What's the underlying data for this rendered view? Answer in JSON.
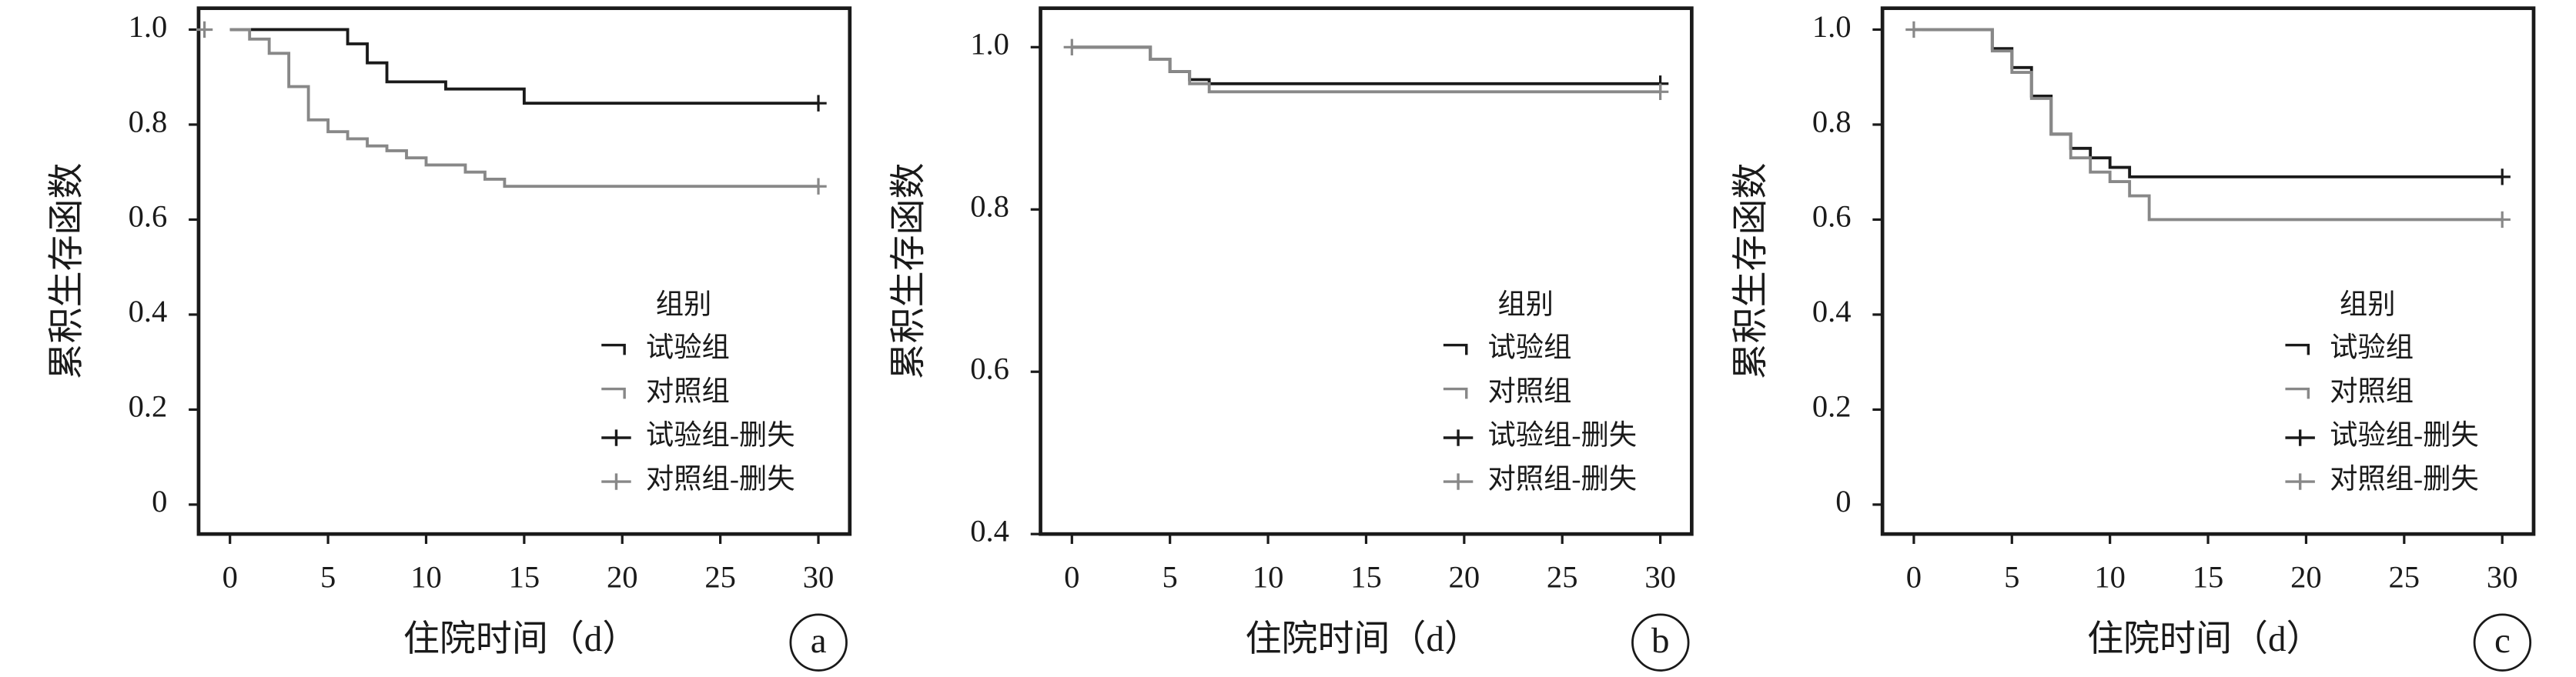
{
  "chart_data": [
    {
      "type": "line",
      "drawstyle": "steps-post",
      "panel_label": "a",
      "xlabel": "住院时间（d）",
      "ylabel": "累积生存函数",
      "legend_title": "组别",
      "legend_loc": "lower right",
      "xlim": [
        -1.6,
        31.6
      ],
      "xticks": [
        0,
        5,
        10,
        15,
        20,
        25,
        30
      ],
      "ylim": [
        -0.062,
        1.045
      ],
      "yticks": [
        0,
        0.2,
        0.4,
        0.6,
        0.8,
        {
          "value": 1,
          "label": "1.0"
        }
      ],
      "series": [
        {
          "name": "试验组",
          "color": "#1a1a1a",
          "x": [
            0,
            6,
            7,
            8,
            11,
            15,
            30
          ],
          "values": [
            1,
            0.97,
            0.93,
            0.89,
            0.875,
            0.845,
            0.845
          ]
        },
        {
          "name": "对照组",
          "color": "#888888",
          "x": [
            0,
            1,
            2,
            3,
            4,
            5,
            6,
            7,
            8,
            9,
            10,
            12,
            13,
            14,
            30
          ],
          "values": [
            1,
            0.98,
            0.95,
            0.88,
            0.81,
            0.785,
            0.77,
            0.755,
            0.745,
            0.73,
            0.715,
            0.7,
            0.685,
            0.67,
            0.67
          ]
        },
        {
          "name": "试验组-删失",
          "color": "#1a1a1a",
          "marker": "+",
          "x": [
            30
          ],
          "values": [
            0.845
          ]
        },
        {
          "name": "对照组-删失",
          "color": "#888888",
          "marker": "+",
          "x": [
            -1.3,
            30
          ],
          "values": [
            1,
            0.67
          ]
        }
      ]
    },
    {
      "type": "line",
      "drawstyle": "steps-post",
      "panel_label": "b",
      "xlabel": "住院时间（d）",
      "ylabel": "累积生存函数",
      "legend_title": "组别",
      "legend_loc": "lower right",
      "xlim": [
        -1.6,
        31.6
      ],
      "xticks": [
        0,
        5,
        10,
        15,
        20,
        25,
        30
      ],
      "ylim": [
        0.4,
        1.048
      ],
      "yticks": [
        0.4,
        0.6,
        0.8,
        {
          "value": 1,
          "label": "1.0"
        }
      ],
      "series": [
        {
          "name": "试验组",
          "color": "#1a1a1a",
          "x": [
            0,
            4,
            5,
            6,
            7,
            30
          ],
          "values": [
            1,
            0.985,
            0.97,
            0.96,
            0.955,
            0.955
          ]
        },
        {
          "name": "对照组",
          "color": "#888888",
          "x": [
            0,
            4,
            5,
            6,
            7,
            30
          ],
          "values": [
            1,
            0.985,
            0.97,
            0.955,
            0.945,
            0.945
          ]
        },
        {
          "name": "试验组-删失",
          "color": "#1a1a1a",
          "marker": "+",
          "x": [
            30
          ],
          "values": [
            0.955
          ]
        },
        {
          "name": "对照组-删失",
          "color": "#888888",
          "marker": "+",
          "x": [
            0,
            30
          ],
          "values": [
            1,
            0.945
          ]
        }
      ]
    },
    {
      "type": "line",
      "drawstyle": "steps-post",
      "panel_label": "c",
      "xlabel": "住院时间（d）",
      "ylabel": "累积生存函数",
      "legend_title": "组别",
      "legend_loc": "lower right",
      "xlim": [
        -1.6,
        31.6
      ],
      "xticks": [
        0,
        5,
        10,
        15,
        20,
        25,
        30
      ],
      "ylim": [
        -0.062,
        1.045
      ],
      "yticks": [
        0,
        0.2,
        0.4,
        0.6,
        0.8,
        {
          "value": 1,
          "label": "1.0"
        }
      ],
      "series": [
        {
          "name": "试验组",
          "color": "#1a1a1a",
          "x": [
            0,
            4,
            5,
            6,
            7,
            8,
            9,
            10,
            11,
            30
          ],
          "values": [
            1,
            0.96,
            0.92,
            0.86,
            0.78,
            0.75,
            0.73,
            0.71,
            0.69,
            0.69
          ]
        },
        {
          "name": "对照组",
          "color": "#888888",
          "x": [
            0,
            4,
            5,
            6,
            7,
            8,
            9,
            10,
            11,
            12,
            30
          ],
          "values": [
            1,
            0.955,
            0.91,
            0.855,
            0.78,
            0.73,
            0.7,
            0.68,
            0.65,
            0.6,
            0.6
          ]
        },
        {
          "name": "试验组-删失",
          "color": "#1a1a1a",
          "marker": "+",
          "x": [
            30
          ],
          "values": [
            0.69
          ]
        },
        {
          "name": "对照组-删失",
          "color": "#888888",
          "marker": "+",
          "x": [
            0,
            30
          ],
          "values": [
            1,
            0.6
          ]
        }
      ]
    }
  ]
}
